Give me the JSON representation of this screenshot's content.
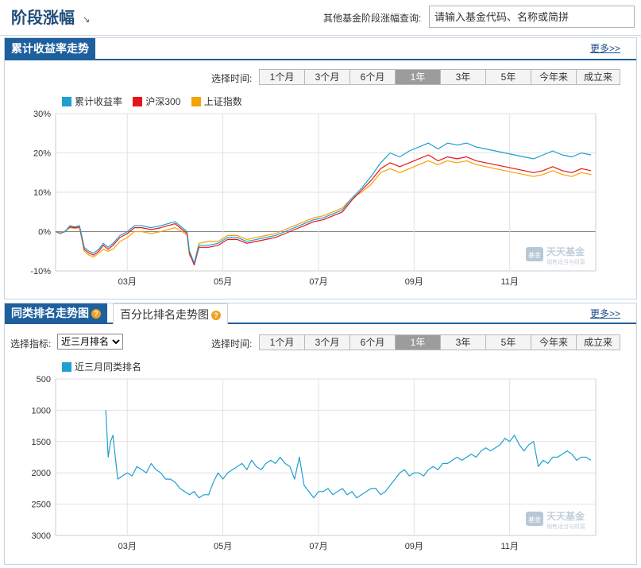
{
  "header": {
    "title": "阶段涨幅",
    "title_arrow": "↘",
    "query_label": "其他基金阶段涨幅查询:",
    "search_placeholder": "请输入基金代码、名称或简拼"
  },
  "panel1": {
    "title": "累计收益率走势",
    "more": "更多>>",
    "range_label": "选择时间:",
    "ranges": [
      "1个月",
      "3个月",
      "6个月",
      "1年",
      "3年",
      "5年",
      "今年来",
      "成立来"
    ],
    "active_range": 3,
    "legend": [
      {
        "name": "累计收益率",
        "color": "#1f9fd0"
      },
      {
        "name": "沪深300",
        "color": "#e8141c"
      },
      {
        "name": "上证指数",
        "color": "#f5a200"
      }
    ]
  },
  "panel2": {
    "tab_active": "同类排名走势图",
    "tab_inactive": "百分比排名走势图",
    "more": "更多>>",
    "indicator_label": "选择指标:",
    "indicator_value": "近三月排名",
    "range_label": "选择时间:",
    "ranges": [
      "1个月",
      "3个月",
      "6个月",
      "1年",
      "3年",
      "5年",
      "今年来",
      "成立来"
    ],
    "active_range": 3,
    "legend": [
      {
        "name": "近三月同类排名",
        "color": "#1f9fd0"
      }
    ]
  },
  "watermark": {
    "main": "天天基金",
    "sub": "销售适当与财富",
    "badge": "基金"
  },
  "chart_data": [
    {
      "type": "line",
      "title": "",
      "ylabel": "",
      "xlabel": "",
      "yticks": [
        "30%",
        "20%",
        "10%",
        "0%",
        "-10%"
      ],
      "ylim": [
        -10,
        30
      ],
      "xticks": [
        "03月",
        "05月",
        "07月",
        "09月",
        "11月"
      ],
      "xtick_positions": [
        1.5,
        3.5,
        5.5,
        7.5,
        9.5
      ],
      "xlim": [
        0,
        11.3
      ],
      "grid": true,
      "legend_position": "top-left",
      "series": [
        {
          "name": "累计收益率",
          "color": "#1f9fd0",
          "x": [
            0,
            0.1,
            0.2,
            0.3,
            0.4,
            0.5,
            0.6,
            0.7,
            0.8,
            0.9,
            1.0,
            1.1,
            1.2,
            1.35,
            1.5,
            1.65,
            1.8,
            2.0,
            2.2,
            2.35,
            2.5,
            2.65,
            2.75,
            2.8,
            2.9,
            3.0,
            3.2,
            3.4,
            3.6,
            3.8,
            4.0,
            4.2,
            4.4,
            4.6,
            4.8,
            5.0,
            5.2,
            5.4,
            5.6,
            5.8,
            6.0,
            6.2,
            6.4,
            6.6,
            6.8,
            7.0,
            7.2,
            7.4,
            7.6,
            7.8,
            8.0,
            8.2,
            8.4,
            8.6,
            8.8,
            9.0,
            9.2,
            9.4,
            9.6,
            9.8,
            10.0,
            10.2,
            10.4,
            10.6,
            10.8,
            11.0,
            11.2
          ],
          "values": [
            0,
            -0.5,
            0,
            1.5,
            1.2,
            1.5,
            -4,
            -5,
            -5.5,
            -4.5,
            -3,
            -4,
            -3,
            -1,
            0,
            1.5,
            1.5,
            1,
            1.5,
            2,
            2.5,
            1,
            0,
            -5,
            -8,
            -3.5,
            -3.5,
            -3,
            -1.5,
            -1.5,
            -2.5,
            -2,
            -1.5,
            -1,
            0,
            1,
            2,
            3,
            3.5,
            4.5,
            5.5,
            8.5,
            11,
            14,
            17.5,
            20,
            19,
            20.5,
            21.5,
            22.5,
            21,
            22.5,
            22,
            22.5,
            21.5,
            21,
            20.5,
            20,
            19.5,
            19,
            18.5,
            19.5,
            20.5,
            19.5,
            19,
            20,
            19.5
          ]
        },
        {
          "name": "沪深300",
          "color": "#e8141c",
          "x": [
            0,
            0.1,
            0.2,
            0.3,
            0.4,
            0.5,
            0.6,
            0.7,
            0.8,
            0.9,
            1.0,
            1.1,
            1.2,
            1.35,
            1.5,
            1.65,
            1.8,
            2.0,
            2.2,
            2.35,
            2.5,
            2.65,
            2.75,
            2.8,
            2.9,
            3.0,
            3.2,
            3.4,
            3.6,
            3.8,
            4.0,
            4.2,
            4.4,
            4.6,
            4.8,
            5.0,
            5.2,
            5.4,
            5.6,
            5.8,
            6.0,
            6.2,
            6.4,
            6.6,
            6.8,
            7.0,
            7.2,
            7.4,
            7.6,
            7.8,
            8.0,
            8.2,
            8.4,
            8.6,
            8.8,
            9.0,
            9.2,
            9.4,
            9.6,
            9.8,
            10.0,
            10.2,
            10.4,
            10.6,
            10.8,
            11.0,
            11.2
          ],
          "values": [
            0,
            -0.5,
            0,
            1.2,
            1,
            1.2,
            -4.5,
            -5.5,
            -6,
            -5,
            -3.5,
            -4.5,
            -3.5,
            -1.5,
            -0.5,
            1,
            1,
            0.5,
            1,
            1.5,
            2,
            0.5,
            -0.5,
            -5.5,
            -8.5,
            -4,
            -4,
            -3.5,
            -2,
            -2,
            -3,
            -2.5,
            -2,
            -1.5,
            -0.5,
            0.5,
            1.5,
            2.5,
            3,
            4,
            5,
            8,
            10.5,
            13,
            16,
            17.5,
            16.5,
            17.5,
            18.5,
            19.5,
            18,
            19,
            18.5,
            19,
            18,
            17.5,
            17,
            16.5,
            16,
            15.5,
            15,
            15.5,
            16.5,
            15.5,
            15,
            16,
            15.5
          ]
        },
        {
          "name": "上证指数",
          "color": "#f5a200",
          "x": [
            0,
            0.1,
            0.2,
            0.3,
            0.4,
            0.5,
            0.6,
            0.7,
            0.8,
            0.9,
            1.0,
            1.1,
            1.2,
            1.35,
            1.5,
            1.65,
            1.8,
            2.0,
            2.2,
            2.35,
            2.5,
            2.65,
            2.75,
            2.8,
            2.9,
            3.0,
            3.2,
            3.4,
            3.6,
            3.8,
            4.0,
            4.2,
            4.4,
            4.6,
            4.8,
            5.0,
            5.2,
            5.4,
            5.6,
            5.8,
            6.0,
            6.2,
            6.4,
            6.6,
            6.8,
            7.0,
            7.2,
            7.4,
            7.6,
            7.8,
            8.0,
            8.2,
            8.4,
            8.6,
            8.8,
            9.0,
            9.2,
            9.4,
            9.6,
            9.8,
            10.0,
            10.2,
            10.4,
            10.6,
            10.8,
            11.0,
            11.2
          ],
          "values": [
            0,
            -0.3,
            0.2,
            1,
            0.8,
            1,
            -5,
            -6,
            -6.5,
            -5.5,
            -4.5,
            -5,
            -4.5,
            -2.5,
            -1.5,
            0,
            0,
            -0.5,
            0,
            0.5,
            1,
            0,
            -1,
            -6,
            -8,
            -3,
            -2.5,
            -2.5,
            -1,
            -1,
            -2,
            -1.5,
            -1,
            -0.5,
            0.5,
            1.5,
            2.5,
            3.5,
            4,
            5,
            6,
            8.5,
            10,
            12,
            15,
            16,
            15,
            16,
            17,
            18,
            17,
            18,
            17.5,
            18,
            17,
            16.5,
            16,
            15.5,
            15,
            14.5,
            14,
            14.5,
            15.5,
            14.5,
            14,
            15,
            14.5
          ]
        }
      ]
    },
    {
      "type": "line",
      "title": "",
      "ylabel": "",
      "xlabel": "",
      "yticks": [
        "500",
        "1000",
        "1500",
        "2000",
        "2500",
        "3000"
      ],
      "ylim": [
        500,
        3000
      ],
      "y_inverted": true,
      "xticks": [
        "03月",
        "05月",
        "07月",
        "09月",
        "11月"
      ],
      "xtick_positions": [
        1.5,
        3.5,
        5.5,
        7.5,
        9.5
      ],
      "xlim": [
        0,
        11.3
      ],
      "grid": true,
      "legend_position": "top-left",
      "series": [
        {
          "name": "近三月同类排名",
          "color": "#1f9fd0",
          "x": [
            1.05,
            1.1,
            1.15,
            1.2,
            1.25,
            1.3,
            1.4,
            1.5,
            1.6,
            1.7,
            1.8,
            1.9,
            2.0,
            2.1,
            2.2,
            2.3,
            2.4,
            2.5,
            2.6,
            2.7,
            2.8,
            2.9,
            3.0,
            3.1,
            3.2,
            3.3,
            3.4,
            3.5,
            3.6,
            3.7,
            3.8,
            3.9,
            4.0,
            4.1,
            4.2,
            4.3,
            4.4,
            4.5,
            4.6,
            4.7,
            4.8,
            4.9,
            5.0,
            5.1,
            5.2,
            5.3,
            5.4,
            5.5,
            5.6,
            5.7,
            5.8,
            5.9,
            6.0,
            6.1,
            6.2,
            6.3,
            6.4,
            6.5,
            6.6,
            6.7,
            6.8,
            6.9,
            7.0,
            7.1,
            7.2,
            7.3,
            7.4,
            7.5,
            7.6,
            7.7,
            7.8,
            7.9,
            8.0,
            8.1,
            8.2,
            8.3,
            8.4,
            8.5,
            8.6,
            8.7,
            8.8,
            8.9,
            9.0,
            9.1,
            9.2,
            9.3,
            9.4,
            9.5,
            9.6,
            9.7,
            9.8,
            9.9,
            10.0,
            10.1,
            10.2,
            10.3,
            10.4,
            10.5,
            10.6,
            10.7,
            10.8,
            10.9,
            11.0,
            11.1,
            11.2
          ],
          "values": [
            1000,
            1750,
            1500,
            1400,
            1750,
            2100,
            2050,
            2000,
            2050,
            1900,
            1950,
            2000,
            1850,
            1950,
            2000,
            2100,
            2100,
            2150,
            2250,
            2300,
            2350,
            2300,
            2400,
            2350,
            2350,
            2150,
            2000,
            2100,
            2000,
            1950,
            1900,
            1850,
            1950,
            1800,
            1900,
            1950,
            1850,
            1800,
            1850,
            1750,
            1850,
            1900,
            2100,
            1750,
            2200,
            2300,
            2400,
            2300,
            2300,
            2250,
            2350,
            2300,
            2250,
            2350,
            2300,
            2400,
            2350,
            2300,
            2250,
            2250,
            2350,
            2300,
            2200,
            2100,
            2000,
            1950,
            2050,
            2000,
            2000,
            2050,
            1950,
            1900,
            1950,
            1850,
            1850,
            1800,
            1750,
            1800,
            1750,
            1700,
            1750,
            1650,
            1600,
            1650,
            1600,
            1550,
            1450,
            1500,
            1400,
            1550,
            1650,
            1550,
            1500,
            1900,
            1800,
            1850,
            1750,
            1750,
            1700,
            1650,
            1700,
            1800,
            1750,
            1750,
            1800
          ]
        }
      ]
    }
  ]
}
